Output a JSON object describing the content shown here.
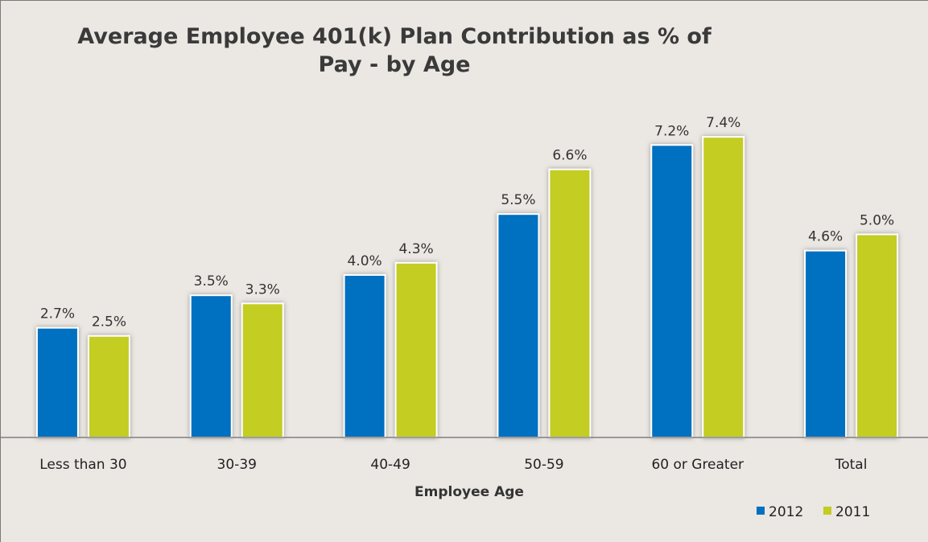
{
  "chart_data": {
    "type": "bar",
    "title": "Average Employee 401(k) Plan Contribution as % of Pay - by Age",
    "xlabel": "Employee Age",
    "ylabel": "",
    "categories": [
      "Less than 30",
      "30-39",
      "40-49",
      "50-59",
      "60 or Greater",
      "Total"
    ],
    "series": [
      {
        "name": "2012",
        "color": "#0070c0",
        "values": [
          2.7,
          3.5,
          4.0,
          5.5,
          7.2,
          4.6
        ],
        "labels": [
          "2.7%",
          "3.5%",
          "4.0%",
          "5.5%",
          "7.2%",
          "4.6%"
        ]
      },
      {
        "name": "2011",
        "color": "#c3cd22",
        "values": [
          2.5,
          3.3,
          4.3,
          6.6,
          7.4,
          5.0
        ],
        "labels": [
          "2.5%",
          "3.3%",
          "4.3%",
          "6.6%",
          "7.4%",
          "5.0%"
        ]
      }
    ],
    "ylim": [
      0,
      7.8
    ],
    "grid": false,
    "legend": "bottom-right"
  }
}
